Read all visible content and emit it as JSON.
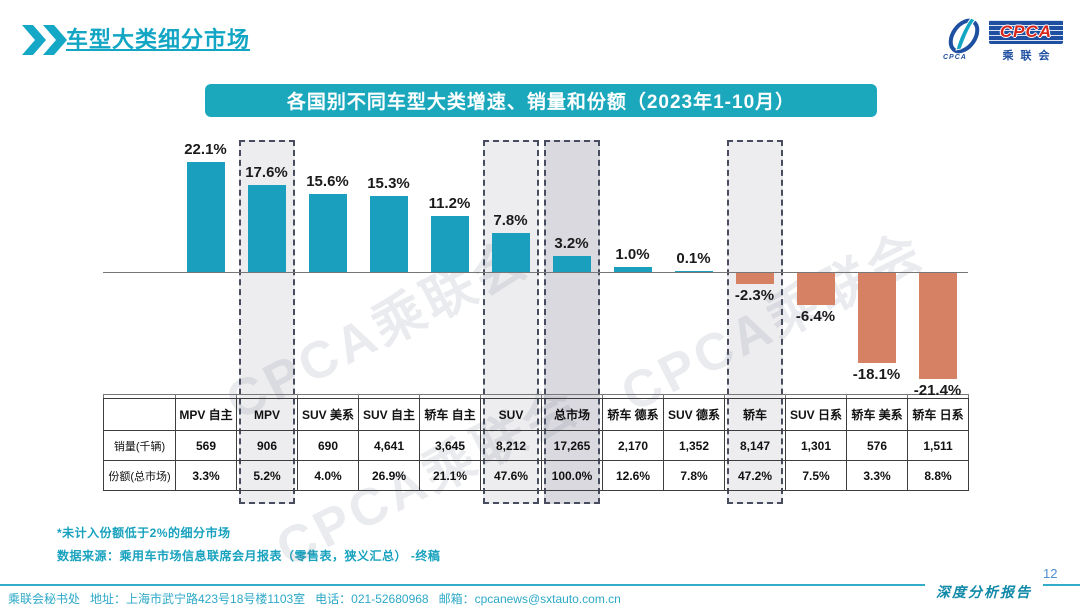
{
  "header": {
    "title": "车型大类细分市场",
    "logo": {
      "main": "CPCA",
      "sub": "乘联会",
      "mark": "CPCA"
    }
  },
  "banner": {
    "text": "各国别不同车型大类增速、销量和份额（2023年1-10月）"
  },
  "chart_data": {
    "type": "bar",
    "title": "各国别不同车型大类增速、销量和份额（2023年1-10月）",
    "categories": [
      "MPV 自主",
      "MPV",
      "SUV 美系",
      "SUV 自主",
      "轿车 自主",
      "SUV",
      "总市场",
      "轿车 德系",
      "SUV 德系",
      "轿车",
      "SUV 日系",
      "轿车 美系",
      "轿车 日系"
    ],
    "values": [
      22.1,
      17.6,
      15.6,
      15.3,
      11.2,
      7.8,
      3.2,
      1.0,
      0.1,
      -2.3,
      -6.4,
      -18.1,
      -21.4
    ],
    "labels": [
      "22.1%",
      "17.6%",
      "15.6%",
      "15.3%",
      "11.2%",
      "7.8%",
      "3.2%",
      "1.0%",
      "0.1%",
      "-2.3%",
      "-6.4%",
      "-18.1%",
      "-21.4%"
    ],
    "highlight_indices": [
      1,
      5,
      6,
      9
    ],
    "dark_highlight_index": 6,
    "highlighted_categories": [
      "MPV",
      "SUV",
      "总市场",
      "轿车"
    ],
    "ylim": [
      -25,
      25
    ],
    "grid": false,
    "legend": false,
    "positive_color": "#1A9FBE",
    "negative_color": "#D68163"
  },
  "table": {
    "corner": "",
    "columns": [
      "MPV 自主",
      "MPV",
      "SUV 美系",
      "SUV 自主",
      "轿车 自主",
      "SUV",
      "总市场",
      "轿车 德系",
      "SUV 德系",
      "轿车",
      "SUV 日系",
      "轿车 美系",
      "轿车 日系"
    ],
    "rows": [
      {
        "label": "销量(千辆)",
        "values": [
          "569",
          "906",
          "690",
          "4,641",
          "3,645",
          "8,212",
          "17,265",
          "2,170",
          "1,352",
          "8,147",
          "1,301",
          "576",
          "1,511"
        ]
      },
      {
        "label": "份额(总市场)",
        "values": [
          "3.3%",
          "5.2%",
          "4.0%",
          "26.9%",
          "21.1%",
          "47.6%",
          "100.0%",
          "12.6%",
          "7.8%",
          "47.2%",
          "7.5%",
          "3.3%",
          "8.8%"
        ]
      }
    ]
  },
  "footnotes": [
    "*未计入份额低于2%的细分市场",
    "数据来源：乘用车市场信息联席会月报表（零售表，狭义汇总）  -终稿"
  ],
  "footer": {
    "contact": "乘联会秘书处   地址：上海市武宁路423号18号楼1103室   电话：021-52680968   邮箱：cpcanews@sxtauto.com.cn",
    "report_label": "深度分析报告",
    "page": "12"
  },
  "watermark": {
    "text": "CPCA乘联会"
  },
  "colors": {
    "accent_teal": "#12A6C4",
    "banner_bg": "#1BA8BD",
    "box_light": "#EDEDEF",
    "box_dark": "#D9D9DF",
    "dash_border": "#474D5E"
  }
}
